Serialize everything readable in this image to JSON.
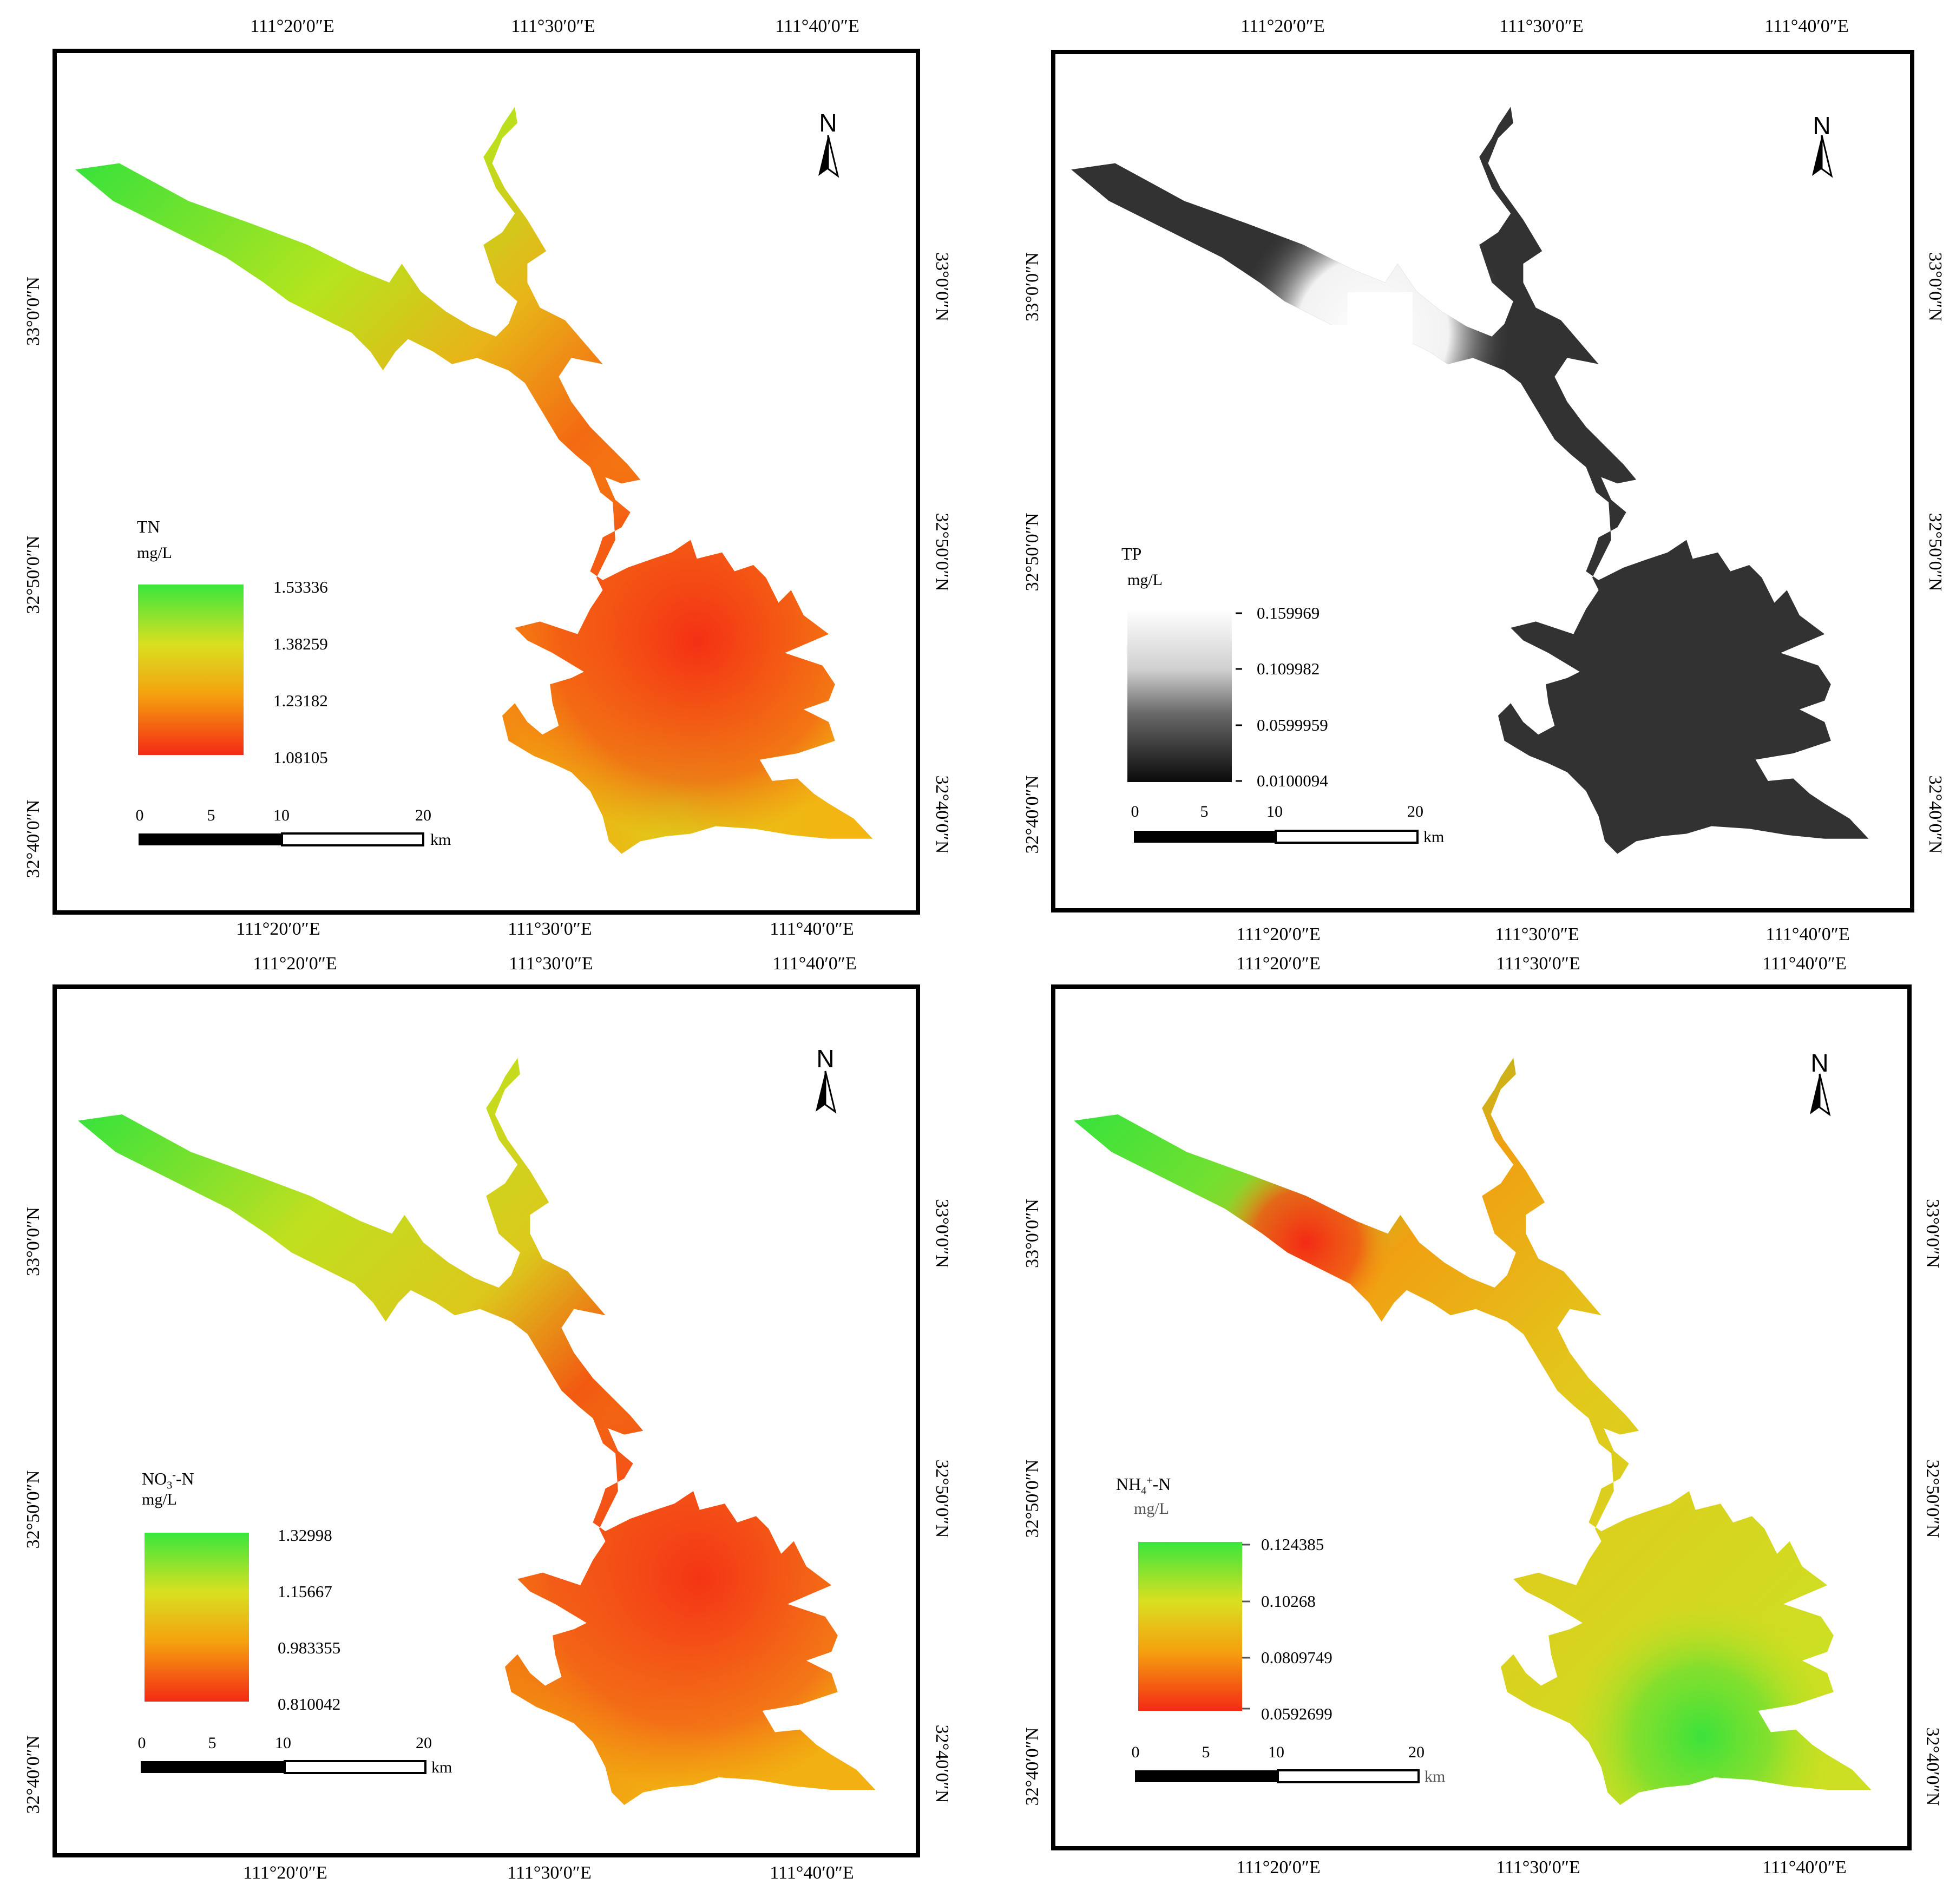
{
  "colors": {
    "green": "#39e63d",
    "yellow": "#d9e020",
    "orange": "#f5a00f",
    "red": "#f42a15",
    "tp_dark": "#1d1d1d",
    "tp_light": "#f7f7f7"
  },
  "panels": [
    {
      "id": "tn",
      "top_labels": [
        "111°20′0″E",
        "111°30′0″E",
        "111°40′0″E"
      ],
      "bottom_labels": [
        "111°20′0″E",
        "111°30′0″E",
        "111°40′0″E"
      ],
      "left_labels": [
        "33°0′0″N",
        "32°50′0″N",
        "32°40′0″N"
      ],
      "right_labels": [
        "33°0′0″N",
        "32°50′0″N",
        "32°40′0″N"
      ],
      "north_label": "N",
      "legend": {
        "title": "TN",
        "unit": "mg/L",
        "values": [
          "1.53336",
          "1.38259",
          "1.23182",
          "1.08105"
        ]
      },
      "scale": {
        "ticks": [
          "0",
          "5",
          "10",
          "20"
        ],
        "unit": "km"
      }
    },
    {
      "id": "tp",
      "top_labels": [
        "111°20′0″E",
        "111°30′0″E",
        "111°40′0″E"
      ],
      "bottom_labels": [
        "111°20′0″E",
        "111°30′0″E",
        "111°40′0″E"
      ],
      "left_labels": [
        "33°0′0″N",
        "32°50′0″N",
        "32°40′0″N"
      ],
      "right_labels": [
        "33°0′0″N",
        "32°50′0″N",
        "32°40′0″N"
      ],
      "north_label": "N",
      "legend": {
        "title": "TP",
        "unit": "mg/L",
        "values": [
          "0.159969",
          "0.109982",
          "0.0599959",
          "0.0100094"
        ]
      },
      "scale": {
        "ticks": [
          "0",
          "5",
          "10",
          "20"
        ],
        "unit": "km"
      }
    },
    {
      "id": "no3",
      "top_labels": [
        "111°20′0″E",
        "111°30′0″E",
        "111°40′0″E"
      ],
      "bottom_labels": [
        "111°20′0″E",
        "111°30′0″E",
        "111°40′0″E"
      ],
      "left_labels": [
        "33°0′0″N",
        "32°50′0″N",
        "32°40′0″N"
      ],
      "right_labels": [
        "33°0′0″N",
        "32°50′0″N",
        "32°40′0″N"
      ],
      "north_label": "N",
      "legend": {
        "title_main": "NO",
        "title_sub": "3",
        "title_sup": "-",
        "title_tail": "-N",
        "unit": "mg/L",
        "values": [
          "1.32998",
          "1.15667",
          "0.983355",
          "0.810042"
        ]
      },
      "scale": {
        "ticks": [
          "0",
          "5",
          "10",
          "20"
        ],
        "unit": "km"
      }
    },
    {
      "id": "nh4",
      "top_labels": [
        "111°20′0″E",
        "111°30′0″E",
        "111°40′0″E"
      ],
      "bottom_labels": [
        "111°20′0″E",
        "111°30′0″E",
        "111°40′0″E"
      ],
      "left_labels": [
        "33°0′0″N",
        "32°50′0″N",
        "32°40′0″N"
      ],
      "right_labels": [
        "33°0′0″N",
        "32°50′0″N",
        "32°40′0″N"
      ],
      "north_label": "N",
      "legend": {
        "title_main": "NH",
        "title_sub": "4",
        "title_sup": "+",
        "title_tail": "-N",
        "unit": "mg/L",
        "values": [
          "0.124385",
          "0.10268",
          "0.0809749",
          "0.0592699"
        ]
      },
      "scale": {
        "ticks": [
          "0",
          "5",
          "10",
          "20"
        ],
        "unit": "km"
      }
    }
  ]
}
